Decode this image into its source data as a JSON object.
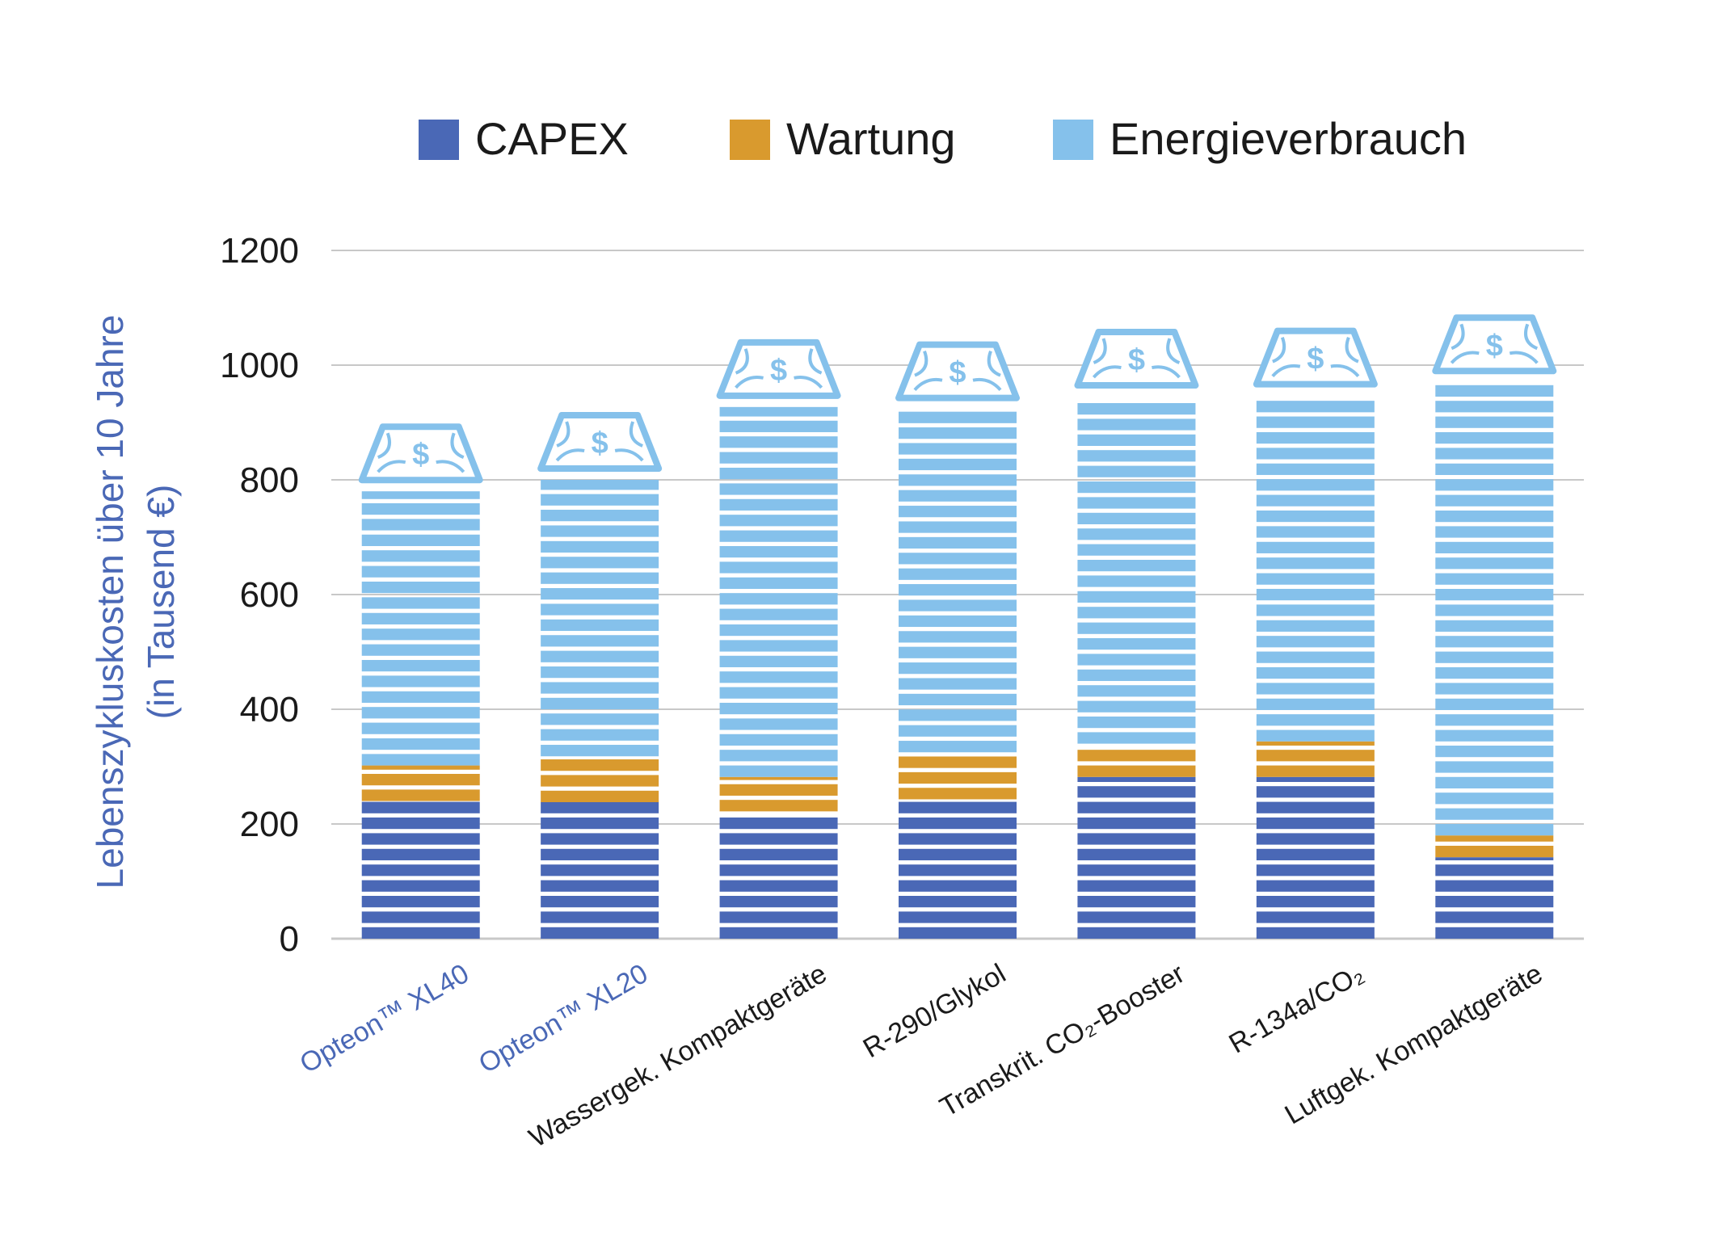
{
  "colors": {
    "capex": "#4a68b6",
    "wartung": "#d99a2e",
    "energie": "#85c1eb",
    "accent_label": "#4a68b6",
    "axis_text": "#1a1a1a",
    "grid": "#c8c8c8"
  },
  "legend": [
    {
      "label": "CAPEX",
      "color": "#4a68b6"
    },
    {
      "label": "Wartung",
      "color": "#d99a2e"
    },
    {
      "label": "Energieverbrauch",
      "color": "#85c1eb"
    }
  ],
  "chart_data": {
    "type": "bar",
    "stacked": true,
    "ylabel_line1": "Lebenszykluskosten über 10 Jahre",
    "ylabel_line2": "(in Tausend €)",
    "ylim": [
      0,
      1200
    ],
    "yticks": [
      "0",
      "200",
      "400",
      "600",
      "800",
      "1000",
      "1200"
    ],
    "grid": true,
    "legend_position": "top",
    "categories": [
      {
        "label": "Opteon™ XL40",
        "highlight": true
      },
      {
        "label": "Opteon™ XL20",
        "highlight": true
      },
      {
        "label": "Wassergek. Kompaktgeräte",
        "highlight": false
      },
      {
        "label": "R-290/Glykol",
        "highlight": false
      },
      {
        "label": "Transkrit. CO₂-Booster",
        "highlight": false
      },
      {
        "label": "R-134a/CO₂",
        "highlight": false
      },
      {
        "label": "Luftgek. Kompaktgeräte",
        "highlight": false
      }
    ],
    "series": [
      {
        "name": "CAPEX",
        "color": "#4a68b6",
        "values": [
          240,
          238,
          222,
          243,
          282,
          282,
          142
        ]
      },
      {
        "name": "Wartung",
        "color": "#d99a2e",
        "values": [
          62,
          80,
          60,
          82,
          58,
          62,
          38
        ]
      },
      {
        "name": "Energieverbrauch",
        "color": "#85c1eb",
        "values": [
          478,
          482,
          645,
          598,
          605,
          603,
          790
        ]
      }
    ],
    "bill_symbol": "$"
  }
}
